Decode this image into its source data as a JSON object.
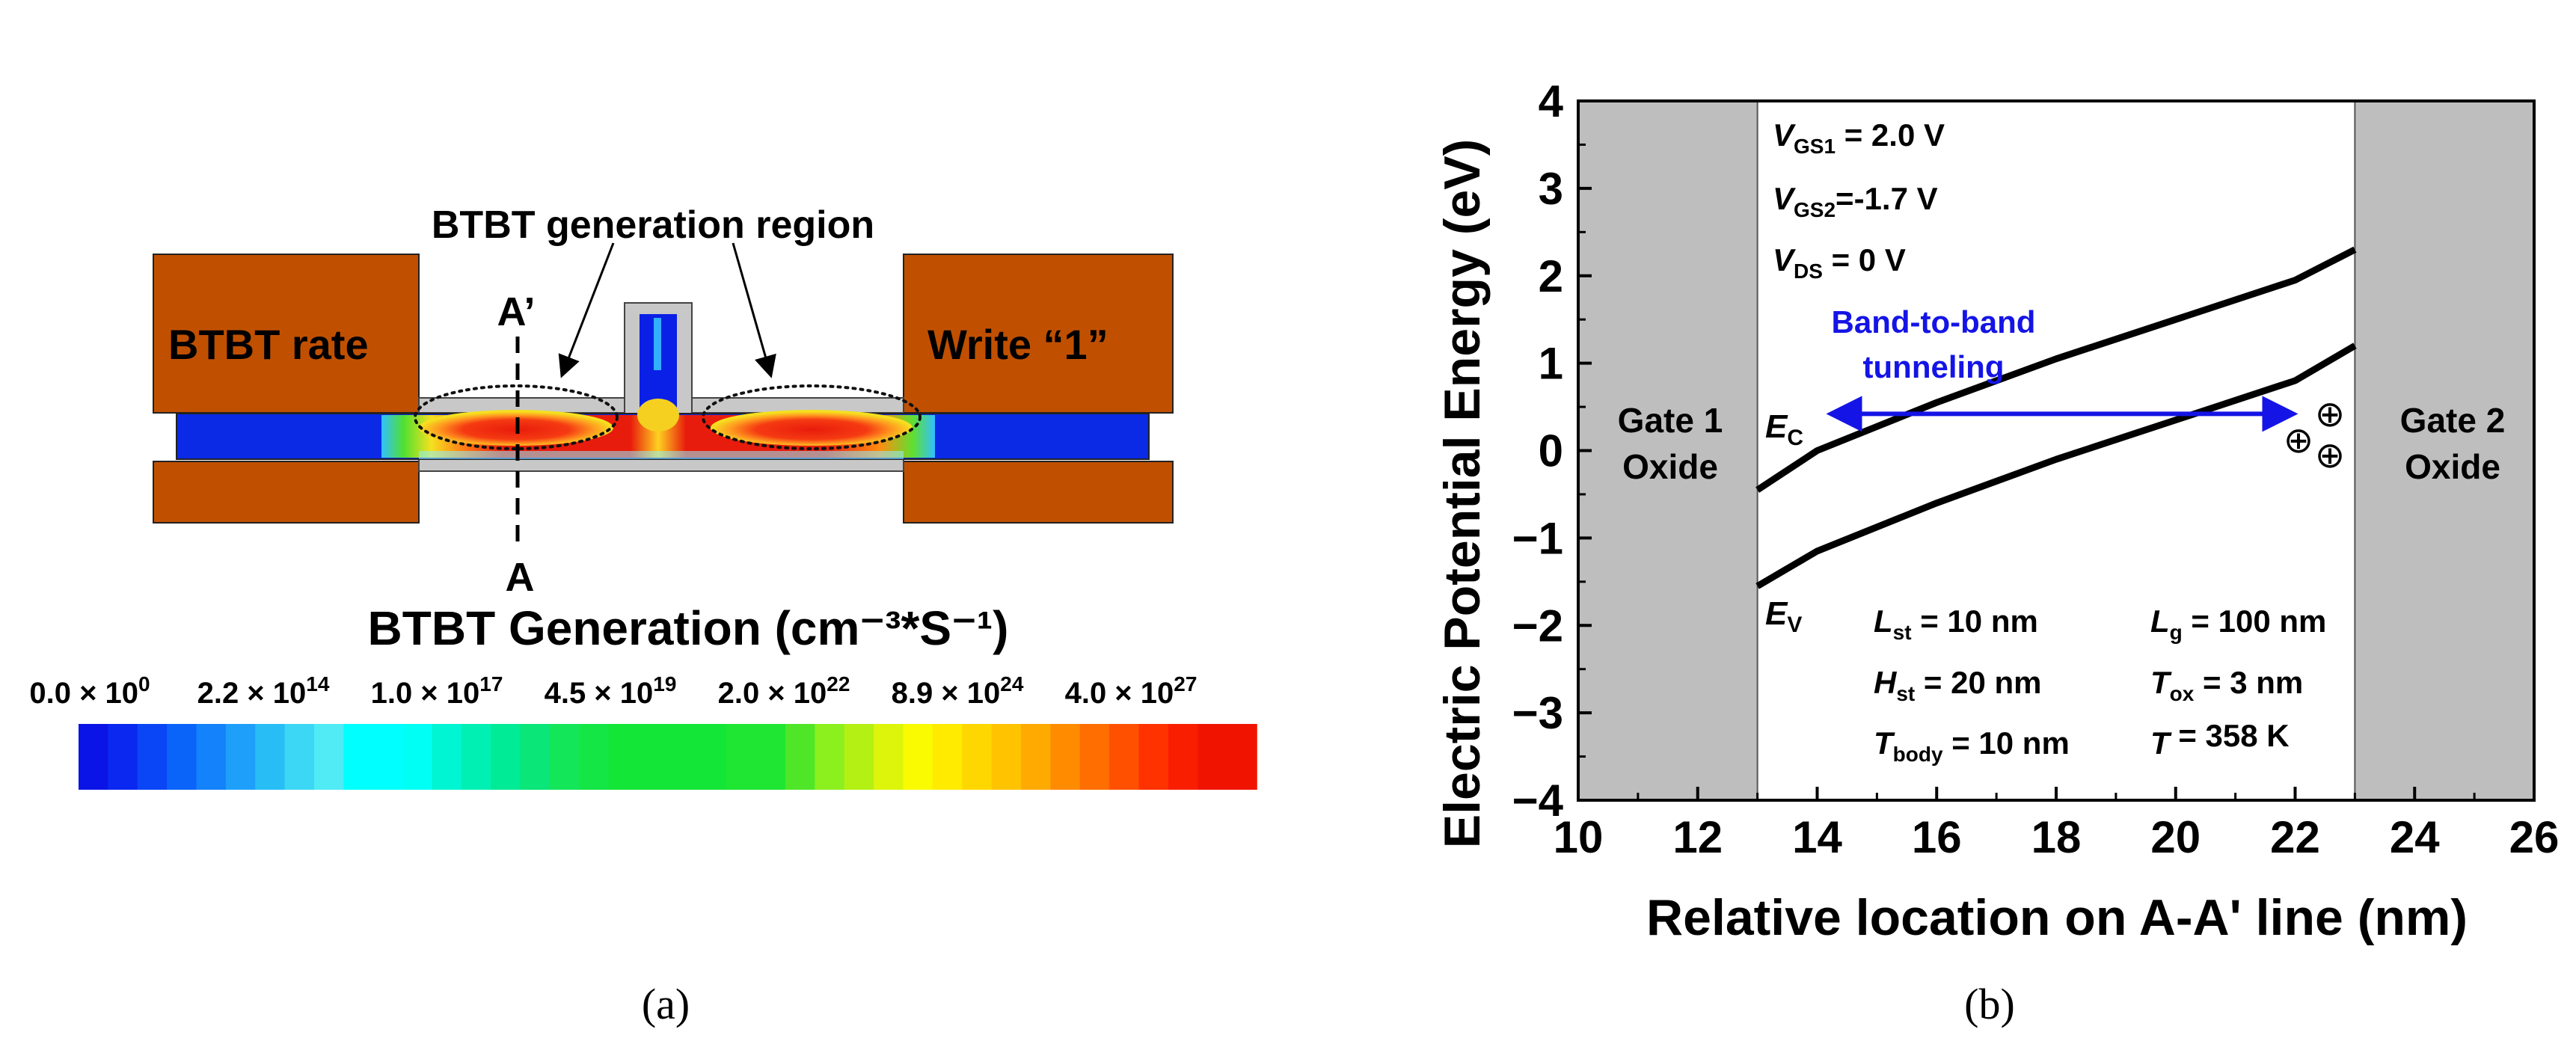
{
  "panel_a": {
    "region_label": "BTBT generation region",
    "left_label": "BTBT rate",
    "right_label": "Write “1”",
    "cut_top": "A’",
    "cut_bottom": "A",
    "legend_title": "BTBT Generation (cm⁻³*S⁻¹)",
    "legend_ticks": [
      {
        "mant": "0.0",
        "exp": "0"
      },
      {
        "mant": "2.2",
        "exp": "14"
      },
      {
        "mant": "1.0",
        "exp": "17"
      },
      {
        "mant": "4.5",
        "exp": "19"
      },
      {
        "mant": "2.0",
        "exp": "22"
      },
      {
        "mant": "8.9",
        "exp": "24"
      },
      {
        "mant": "4.0",
        "exp": "27"
      }
    ],
    "colorbar_colors": [
      "#0a14e6",
      "#0a28f0",
      "#0a46f5",
      "#0a64fa",
      "#1482fa",
      "#1ea0fa",
      "#28bef5",
      "#3cd7f5",
      "#50ebf5",
      "#00ffff",
      "#00ffff",
      "#00fff5",
      "#00f5d2",
      "#00f0b4",
      "#00eb96",
      "#0ae678",
      "#14e65a",
      "#14e646",
      "#14e637",
      "#14e637",
      "#14e637",
      "#14e637",
      "#1ee632",
      "#1ee632",
      "#50e628",
      "#8cf01e",
      "#b4f014",
      "#dcf50a",
      "#fafa00",
      "#ffeb00",
      "#ffd700",
      "#ffc300",
      "#ffaa00",
      "#ff8c00",
      "#ff6e00",
      "#ff5000",
      "#ff3200",
      "#fa1e00",
      "#f01400",
      "#f01400"
    ],
    "caption": "(a)"
  },
  "panel_b": {
    "caption": "(b)",
    "gate1_label": [
      "Gate 1",
      "Oxide"
    ],
    "gate2_label": [
      "Gate 2",
      "Oxide"
    ],
    "bias_labels": [
      {
        "main": "V",
        "sub": "GS1",
        "rest": " = 2.0 V"
      },
      {
        "main": "V",
        "sub": "GS2",
        "rest": "=-1.7 V"
      },
      {
        "main": "V",
        "sub": "DS",
        "rest": " = 0 V"
      }
    ],
    "btbt_annotation": [
      "Band-to-band",
      "tunneling"
    ],
    "ec_label": {
      "main": "E",
      "sub": "C"
    },
    "ev_label": {
      "main": "E",
      "sub": "V"
    },
    "params": [
      {
        "main": "L",
        "sub": "st",
        "rest": " = 10 nm"
      },
      {
        "main": "L",
        "sub": "g",
        "rest": " = 100 nm"
      },
      {
        "main": "H",
        "sub": "st",
        "rest": " = 20 nm"
      },
      {
        "main": "T",
        "sub": "ox",
        "rest": " = 3 nm"
      },
      {
        "main": "T",
        "sub": "body",
        "rest": " = 10 nm"
      },
      {
        "main": "T",
        "sub": "",
        "rest": " = 358 K"
      }
    ],
    "hole_symbol": "⊕",
    "colors": {
      "band": "#000000",
      "gate": "#bebebe",
      "arrow": "#1414e6",
      "annotation": "#1414e6"
    }
  },
  "chart_data": {
    "type": "line",
    "title": "",
    "xlabel": "Relative location on A-A' line (nm)",
    "ylabel": "Electric Potential Energy (eV)",
    "xlim": [
      10,
      26
    ],
    "ylim": [
      -4,
      4
    ],
    "xticks": [
      10,
      12,
      14,
      16,
      18,
      20,
      22,
      24,
      26
    ],
    "yticks": [
      -4,
      -3,
      -2,
      -1,
      0,
      1,
      2,
      3,
      4
    ],
    "shaded_regions": [
      {
        "x": [
          10,
          13
        ],
        "label": "Gate 1 Oxide"
      },
      {
        "x": [
          23,
          26
        ],
        "label": "Gate 2 Oxide"
      }
    ],
    "series": [
      {
        "name": "E_C",
        "x": [
          13,
          14,
          16,
          18,
          20,
          22,
          23
        ],
        "y": [
          -0.45,
          0.0,
          0.55,
          1.05,
          1.5,
          1.95,
          2.3
        ]
      },
      {
        "name": "E_V",
        "x": [
          13,
          14,
          16,
          18,
          20,
          22,
          23
        ],
        "y": [
          -1.55,
          -1.15,
          -0.6,
          -0.1,
          0.35,
          0.8,
          1.2
        ]
      }
    ],
    "annotations": [
      {
        "text": "Band-to-band tunneling",
        "arrow_x": [
          14.3,
          21.9
        ],
        "arrow_y": 0.42
      }
    ]
  }
}
